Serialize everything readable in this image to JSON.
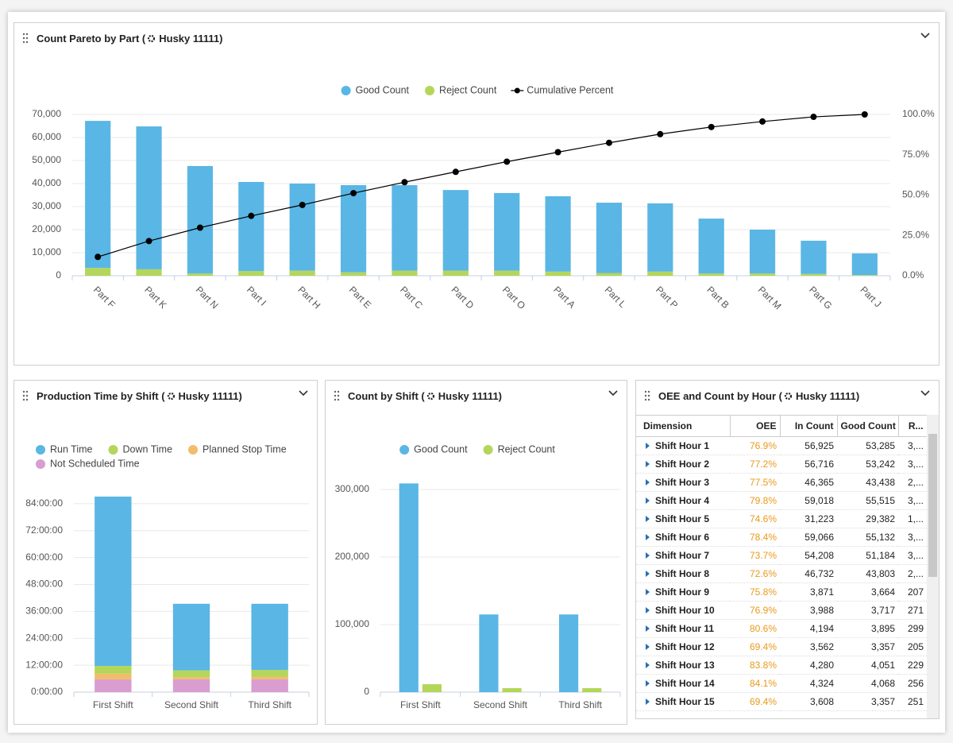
{
  "chart_data": [
    {
      "type": "bar",
      "stacked": true,
      "title": "Count Pareto by Part (",
      "title_machine": "Husky 11111)",
      "categories": [
        "Part F",
        "Part K",
        "Part N",
        "Part I",
        "Part H",
        "Part E",
        "Part C",
        "Part D",
        "Part O",
        "Part A",
        "Part L",
        "Part P",
        "Part B",
        "Part M",
        "Part G",
        "Part J"
      ],
      "series": [
        {
          "name": "Good Count",
          "color": "#5ab6e4",
          "values": [
            63800,
            62000,
            46600,
            38700,
            37800,
            37800,
            37100,
            35000,
            33700,
            32700,
            30500,
            29600,
            23800,
            19000,
            14400,
            9400
          ]
        },
        {
          "name": "Reject Count",
          "color": "#b4d65a",
          "values": [
            3400,
            2800,
            1000,
            2000,
            2200,
            1500,
            2200,
            2200,
            2200,
            1800,
            1200,
            1800,
            1000,
            1000,
            800,
            300
          ]
        },
        {
          "name": "Cumulative Percent",
          "type": "line",
          "axis": "y2",
          "color": "#000000",
          "values": [
            11.7,
            21.5,
            29.8,
            37.1,
            43.9,
            51.2,
            58,
            64.4,
            70.7,
            76.6,
            82.4,
            87.8,
            92.2,
            95.6,
            98.5,
            100
          ]
        }
      ],
      "ylim": [
        0,
        70000
      ],
      "yticks": [
        0,
        {
          "value": 10000,
          "label": "10,000"
        },
        {
          "value": 20000,
          "label": "20,000"
        },
        {
          "value": 30000,
          "label": "30,000"
        },
        {
          "value": 40000,
          "label": "40,000"
        },
        {
          "value": 50000,
          "label": "50,000"
        },
        {
          "value": 60000,
          "label": "60,000"
        },
        {
          "value": 70000,
          "label": "70,000"
        }
      ],
      "y2lim": [
        0,
        100
      ],
      "y2ticks": [
        {
          "value": 0,
          "label": "0.0%"
        },
        {
          "value": 25,
          "label": "25.0%"
        },
        {
          "value": 50,
          "label": "50.0%"
        },
        {
          "value": 75,
          "label": "75.0%"
        },
        {
          "value": 100,
          "label": "100.0%"
        }
      ],
      "grid": true,
      "legend": "top"
    },
    {
      "type": "bar",
      "stacked": true,
      "title": "Production Time by Shift (",
      "title_machine": "Husky 11111)",
      "categories": [
        "First Shift",
        "Second Shift",
        "Third Shift"
      ],
      "series": [
        {
          "name": "Run Time",
          "color": "#5ab6e4",
          "values": [
            75.5,
            29.7,
            29.5
          ]
        },
        {
          "name": "Down Time",
          "color": "#b4d65a",
          "values": [
            3.5,
            3,
            3
          ]
        },
        {
          "name": "Planned Stop Time",
          "color": "#f2bd6b",
          "values": [
            2.5,
            1,
            1.2
          ]
        },
        {
          "name": "Not Scheduled Time",
          "color": "#d99dcf",
          "values": [
            5.7,
            5.7,
            5.7
          ]
        }
      ],
      "ylim": [
        0,
        90
      ],
      "yticks": [
        {
          "value": 0,
          "label": "0:00:00"
        },
        {
          "value": 12,
          "label": "12:00:00"
        },
        {
          "value": 24,
          "label": "24:00:00"
        },
        {
          "value": 36,
          "label": "36:00:00"
        },
        {
          "value": 48,
          "label": "48:00:00"
        },
        {
          "value": 60,
          "label": "60:00:00"
        },
        {
          "value": 72,
          "label": "72:00:00"
        },
        {
          "value": 84,
          "label": "84:00:00"
        }
      ],
      "grid": true,
      "legend": "top-left"
    },
    {
      "type": "bar",
      "stacked": false,
      "title": "Count by Shift (",
      "title_machine": "Husky 11111)",
      "categories": [
        "First Shift",
        "Second Shift",
        "Third Shift"
      ],
      "series": [
        {
          "name": "Good Count",
          "color": "#5ab6e4",
          "values": [
            309000,
            115000,
            115000
          ]
        },
        {
          "name": "Reject Count",
          "color": "#b4d65a",
          "values": [
            11800,
            5900,
            5900
          ]
        }
      ],
      "ylim": [
        0,
        320000
      ],
      "yticks": [
        0,
        {
          "value": 100000,
          "label": "100,000"
        },
        {
          "value": 200000,
          "label": "200,000"
        },
        {
          "value": 300000,
          "label": "300,000"
        }
      ],
      "grid": true,
      "legend": "top"
    }
  ],
  "table": {
    "title": "OEE and Count by Hour (",
    "title_machine": "Husky 11111)",
    "columns": [
      "Dimension",
      "OEE",
      "In Count",
      "Good Count",
      "R..."
    ],
    "rows": [
      [
        "Shift Hour 1",
        "76.9%",
        "56,925",
        "53,285",
        "3,..."
      ],
      [
        "Shift Hour 2",
        "77.2%",
        "56,716",
        "53,242",
        "3,..."
      ],
      [
        "Shift Hour 3",
        "77.5%",
        "46,365",
        "43,438",
        "2,..."
      ],
      [
        "Shift Hour 4",
        "79.8%",
        "59,018",
        "55,515",
        "3,..."
      ],
      [
        "Shift Hour 5",
        "74.6%",
        "31,223",
        "29,382",
        "1,..."
      ],
      [
        "Shift Hour 6",
        "78.4%",
        "59,066",
        "55,132",
        "3,..."
      ],
      [
        "Shift Hour 7",
        "73.7%",
        "54,208",
        "51,184",
        "3,..."
      ],
      [
        "Shift Hour 8",
        "72.6%",
        "46,732",
        "43,803",
        "2,..."
      ],
      [
        "Shift Hour 9",
        "75.8%",
        "3,871",
        "3,664",
        "207"
      ],
      [
        "Shift Hour 10",
        "76.9%",
        "3,988",
        "3,717",
        "271"
      ],
      [
        "Shift Hour 11",
        "80.6%",
        "4,194",
        "3,895",
        "299"
      ],
      [
        "Shift Hour 12",
        "69.4%",
        "3,562",
        "3,357",
        "205"
      ],
      [
        "Shift Hour 13",
        "83.8%",
        "4,280",
        "4,051",
        "229"
      ],
      [
        "Shift Hour 14",
        "84.1%",
        "4,324",
        "4,068",
        "256"
      ],
      [
        "Shift Hour 15",
        "69.4%",
        "3,608",
        "3,357",
        "251"
      ]
    ]
  }
}
